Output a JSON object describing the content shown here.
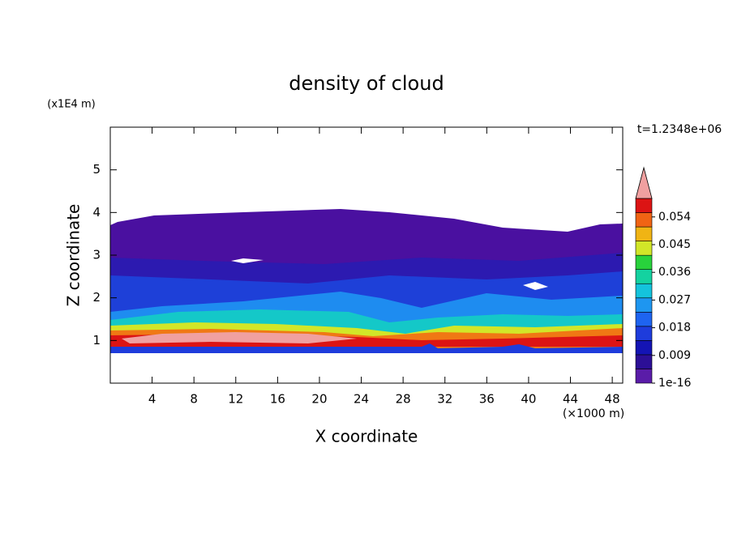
{
  "chart_data": {
    "type": "contour",
    "title": "density of cloud",
    "x_label": "X coordinate",
    "y_label": "Z coordinate",
    "x_unit": "(×1000 m)",
    "y_unit": "(x1E4 m)",
    "time_label": "t=1.2348e+06",
    "xlim": [
      0,
      49
    ],
    "xticks": [
      4,
      8,
      12,
      16,
      20,
      24,
      28,
      32,
      36,
      40,
      44,
      48
    ],
    "ylim": [
      0,
      6
    ],
    "yticks": [
      1,
      2,
      3,
      4,
      5
    ],
    "colorbar": {
      "clim": [
        0,
        0.06
      ],
      "ticks": [
        {
          "value": 1e-16,
          "label": "1e-16"
        },
        0.009,
        0.018,
        0.027,
        0.036,
        0.045,
        0.054
      ],
      "colors": [
        "#5a1ca8",
        "#2c0f96",
        "#1414b4",
        "#1e3cdc",
        "#1e64f0",
        "#1e96f0",
        "#14c3dc",
        "#14d2a0",
        "#28d23c",
        "#d2e628",
        "#f0b414",
        "#f06414",
        "#dc1414"
      ],
      "extend_color": "#f0a0a0"
    }
  }
}
